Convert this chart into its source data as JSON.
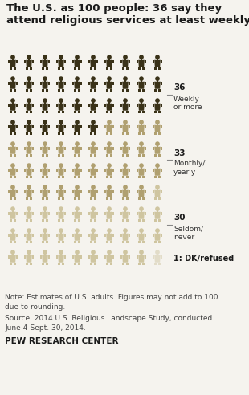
{
  "title": "The U.S. as 100 people: 36 say they\nattend religious services at least weekly",
  "categories": [
    {
      "label": "36",
      "sublabel": "Weekly\nor more",
      "count": 36,
      "color": "#3a3218"
    },
    {
      "label": "33",
      "sublabel": "Monthly/\nyearly",
      "count": 33,
      "color": "#b0a070"
    },
    {
      "label": "30",
      "sublabel": "Seldom/\nnever",
      "count": 30,
      "color": "#cfc5a0"
    },
    {
      "label": "1",
      "sublabel": "DK/refused",
      "count": 1,
      "color": "#e2dcc8"
    }
  ],
  "grid_cols": 10,
  "grid_rows": 10,
  "note": "Note: Estimates of U.S. adults. Figures may not add to 100\ndue to rounding.",
  "source": "Source: 2014 U.S. Religious Landscape Study, conducted\nJune 4-Sept. 30, 2014.",
  "footer": "PEW RESEARCH CENTER",
  "bg_color": "#f5f3ee",
  "title_color": "#1a1a1a",
  "note_color": "#444444",
  "footer_color": "#1a1a1a"
}
